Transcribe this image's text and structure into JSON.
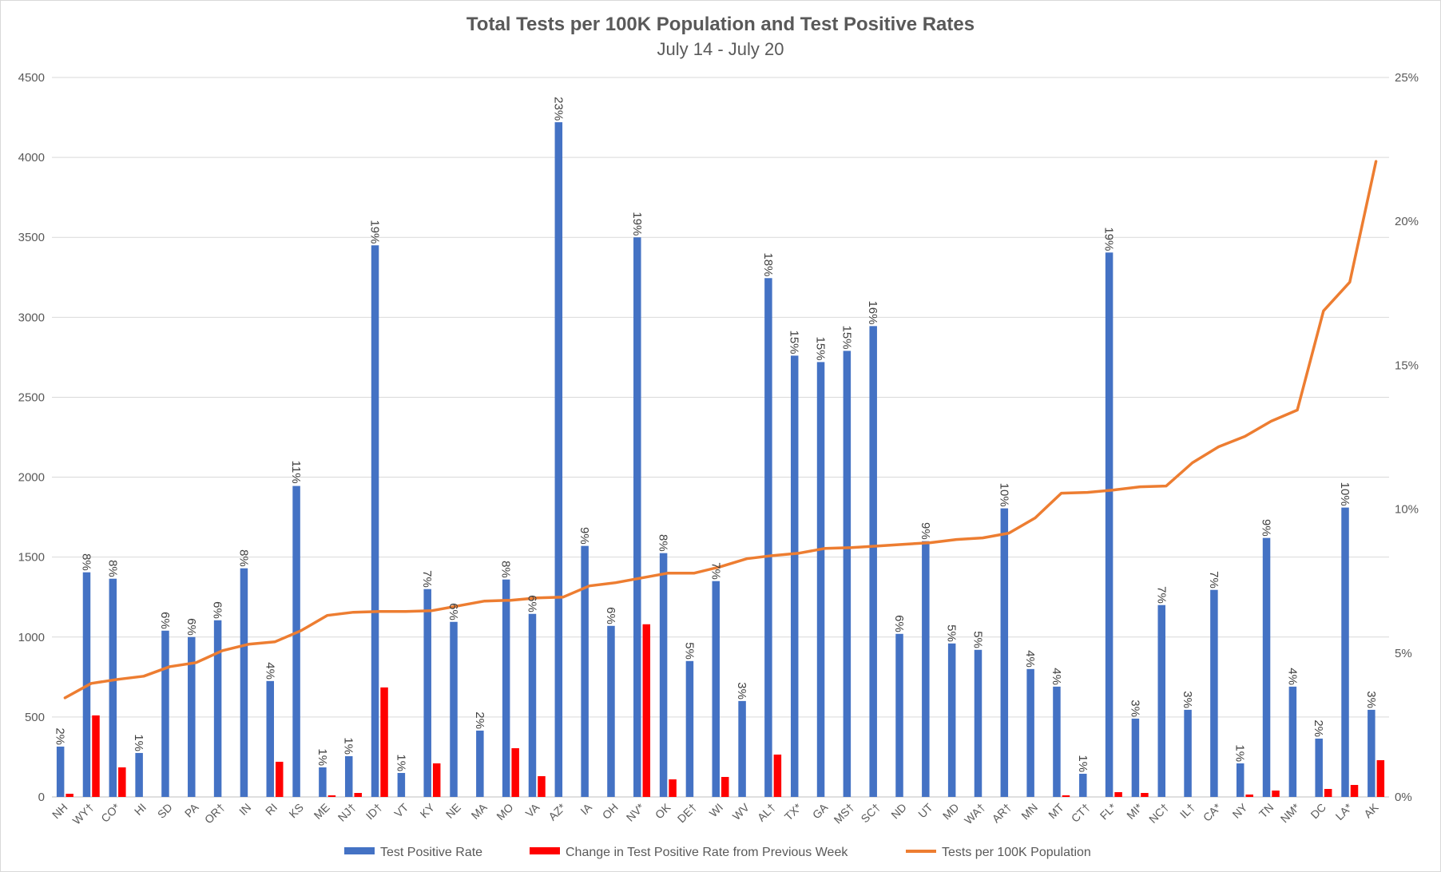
{
  "chart_data": {
    "type": "bar",
    "title": "Total Tests per 100K Population and Test Positive Rates",
    "subtitle": "July 14 - July 20",
    "categories": [
      "NH",
      "WY†",
      "CO*",
      "HI",
      "SD",
      "PA",
      "OR†",
      "IN",
      "RI",
      "KS",
      "ME",
      "NJ†",
      "ID†",
      "VT",
      "KY",
      "NE",
      "MA",
      "MO",
      "VA",
      "AZ*",
      "IA",
      "OH",
      "NV*",
      "OK",
      "DE†",
      "WI",
      "WV",
      "AL†",
      "TX*",
      "GA",
      "MS†",
      "SC†",
      "ND",
      "UT",
      "MD",
      "WA†",
      "AR†",
      "MN",
      "MT",
      "CT†",
      "FL*",
      "MI*",
      "NC†",
      "IL†",
      "CA*",
      "NY",
      "TN",
      "NM*",
      "DC",
      "LA*",
      "AK"
    ],
    "y_left": {
      "min": 0,
      "max": 4500,
      "ticks": [
        0,
        500,
        1000,
        1500,
        2000,
        2500,
        3000,
        3500,
        4000,
        4500
      ]
    },
    "y_right": {
      "min": 0,
      "max": 25,
      "ticks": [
        "0%",
        "5%",
        "10%",
        "15%",
        "20%",
        "25%"
      ]
    },
    "grid": true,
    "legend_position": "bottom",
    "series": [
      {
        "name": "Test Positive Rate",
        "type": "bar",
        "axis": "left",
        "color": "#4472C4",
        "values": [
          315,
          1405,
          1365,
          275,
          1040,
          1000,
          1105,
          1430,
          725,
          1945,
          185,
          255,
          3450,
          150,
          1300,
          1095,
          415,
          1360,
          1145,
          4220,
          1570,
          1070,
          3500,
          1525,
          850,
          1350,
          600,
          3245,
          2760,
          2720,
          2790,
          2945,
          1020,
          1600,
          960,
          920,
          1805,
          800,
          690,
          145,
          3405,
          490,
          1200,
          545,
          1295,
          210,
          1620,
          690,
          365,
          1810,
          545
        ],
        "labels": [
          "2%",
          "8%",
          "8%",
          "1%",
          "6%",
          "6%",
          "6%",
          "8%",
          "4%",
          "11%",
          "1%",
          "1%",
          "19%",
          "1%",
          "7%",
          "6%",
          "2%",
          "8%",
          "6%",
          "23%",
          "9%",
          "6%",
          "19%",
          "8%",
          "5%",
          "7%",
          "3%",
          "18%",
          "15%",
          "15%",
          "15%",
          "16%",
          "6%",
          "9%",
          "5%",
          "5%",
          "10%",
          "4%",
          "4%",
          "1%",
          "19%",
          "3%",
          "7%",
          "3%",
          "7%",
          "1%",
          "9%",
          "4%",
          "2%",
          "10%",
          "3%"
        ]
      },
      {
        "name": "Change in Test Positive Rate from Previous Week",
        "type": "bar",
        "axis": "left",
        "color": "#FF0000",
        "values": [
          20,
          510,
          185,
          0,
          0,
          0,
          0,
          0,
          220,
          0,
          10,
          25,
          685,
          0,
          210,
          0,
          0,
          305,
          130,
          0,
          0,
          0,
          1080,
          110,
          0,
          125,
          0,
          265,
          0,
          0,
          0,
          0,
          0,
          0,
          0,
          0,
          0,
          0,
          10,
          0,
          30,
          25,
          0,
          0,
          0,
          15,
          40,
          0,
          50,
          75,
          230
        ]
      },
      {
        "name": "Tests per 100K Population",
        "type": "line",
        "axis": "left",
        "color": "#ED7D31",
        "values": [
          620,
          710,
          735,
          755,
          815,
          840,
          915,
          955,
          970,
          1040,
          1135,
          1155,
          1160,
          1160,
          1165,
          1195,
          1225,
          1230,
          1245,
          1250,
          1320,
          1340,
          1370,
          1400,
          1400,
          1440,
          1490,
          1510,
          1525,
          1555,
          1560,
          1570,
          1580,
          1590,
          1610,
          1620,
          1650,
          1745,
          1900,
          1905,
          1920,
          1940,
          1945,
          2090,
          2190,
          2255,
          2350,
          2420,
          3040,
          3220,
          3975
        ]
      }
    ]
  }
}
